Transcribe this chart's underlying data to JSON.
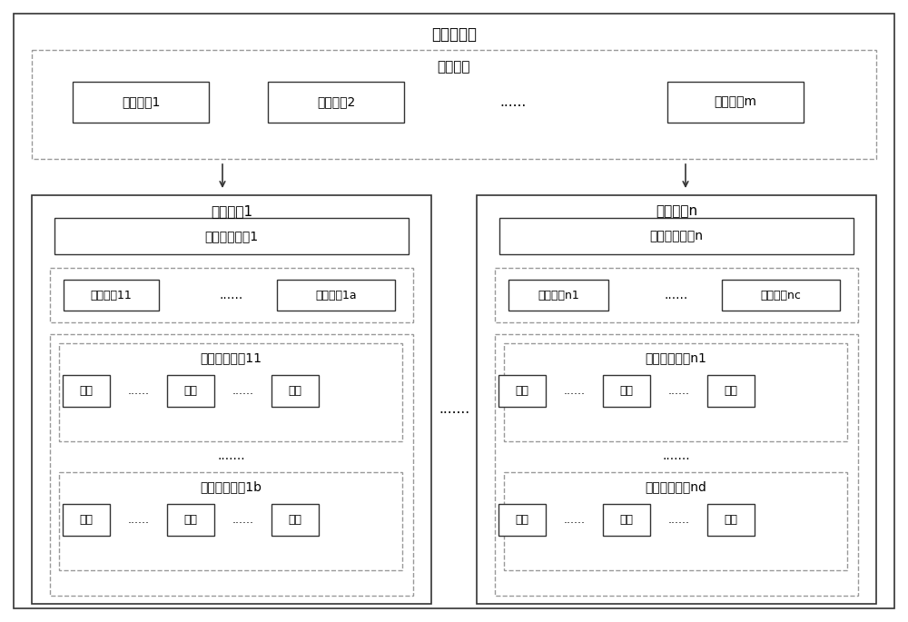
{
  "title": "服务资源池",
  "comm_network_label": "通信网络",
  "network_devices": [
    "网络设备1",
    "网络设备2",
    "......",
    "网络设备m"
  ],
  "service_device1_label": "服务设备1",
  "service_devicen_label": "服务设备n",
  "mgmt1_label": "设备管理单元1",
  "mgmtn_label": "设备管理单元n",
  "master1_labels": [
    "主控单元11",
    "......",
    "主控单元1a"
  ],
  "mastern_labels": [
    "主控单元n1",
    "......",
    "主控单元nc"
  ],
  "biz11_label": "业务服务单元11",
  "biz1b_label": "业务服务单元1b",
  "bizn1_label": "业务服务单元n1",
  "biznd_label": "业务服务单元nd",
  "biz_items": [
    "软件",
    "......",
    "硬件",
    "......",
    "固件"
  ],
  "dots_between": ".......",
  "bg_color": "#ffffff",
  "box_edge_color": "#333333",
  "dashed_edge_color": "#999999",
  "text_color": "#000000",
  "font_size": 11,
  "small_font_size": 10,
  "tiny_font_size": 9
}
